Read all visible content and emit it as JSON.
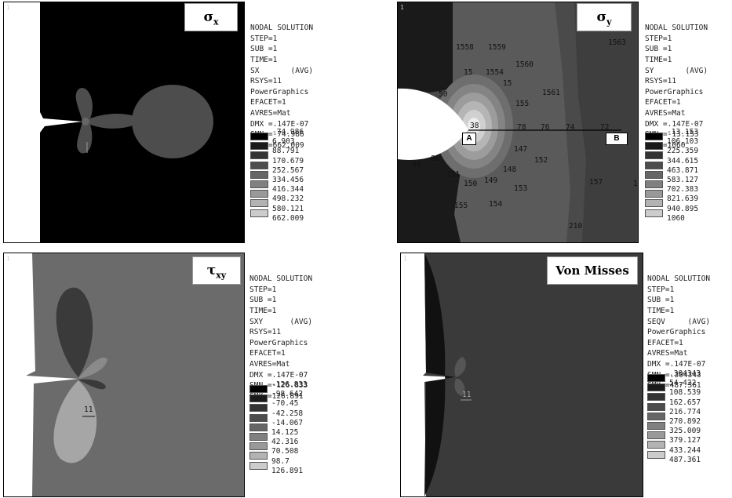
{
  "panels": [
    {
      "id": "sx",
      "corner_number": "1",
      "title": "σ",
      "title_sub": "x",
      "header_lines": [
        "NODAL SOLUTION",
        "STEP=1",
        "SUB =1",
        "TIME=1",
        "SX       (AVG)",
        "RSYS=11",
        "PowerGraphics",
        "EFACET=1",
        "AVRES=Mat",
        "DMX =.147E-07",
        "SMN =-74.986",
        "SMX =662.009"
      ],
      "scale_values": [
        "-74.986",
        "6.903",
        "88.791",
        "170.679",
        "252.567",
        "334.456",
        "416.344",
        "498.232",
        "580.121",
        "662.009"
      ],
      "scale_colors": [
        "#000000",
        "#1a1a1a",
        "#333333",
        "#4d4d4d",
        "#666666",
        "#808080",
        "#999999",
        "#b3b3b3",
        "#cccccc",
        "#e6e6e6"
      ],
      "node_labels": []
    },
    {
      "id": "sy",
      "corner_number": "1",
      "title": "σ",
      "title_sub": "y",
      "header_lines": [
        "NODAL SOLUTION",
        "STEP=1",
        "SUB =1",
        "TIME=1",
        "SY       (AVG)",
        "RSYS=11",
        "PowerGraphics",
        "EFACET=1",
        "AVRES=Mat",
        "DMX =.147E-07",
        "SMN =-13.153",
        "SMX =1060"
      ],
      "scale_values": [
        "-13.153",
        "106.103",
        "225.359",
        "344.615",
        "463.871",
        "583.127",
        "702.383",
        "821.639",
        "940.895",
        "1060"
      ],
      "scale_colors": [
        "#000000",
        "#1a1a1a",
        "#333333",
        "#4d4d4d",
        "#666666",
        "#808080",
        "#999999",
        "#b3b3b3",
        "#cccccc",
        "#e6e6e6"
      ],
      "node_labels": [
        "1558",
        "1559",
        "1563",
        "1560",
        "15",
        "1554",
        "15",
        "1561",
        "50",
        "155",
        "38",
        "78",
        "76",
        "74",
        "72",
        "147",
        "152",
        "84",
        "88",
        "148",
        "151",
        "150",
        "149",
        "153",
        "157",
        "1",
        "155",
        "154",
        "210"
      ],
      "path_labels": {
        "start": "A",
        "end": "B"
      }
    },
    {
      "id": "sxy",
      "corner_number": "1",
      "title": "τ",
      "title_sub": "xy",
      "header_lines": [
        "NODAL SOLUTION",
        "STEP=1",
        "SUB =1",
        "TIME=1",
        "SXY      (AVG)",
        "RSYS=11",
        "PowerGraphics",
        "EFACET=1",
        "AVRES=Mat",
        "DMX =.147E-07",
        "SMN =-126.833",
        "SMX =126.891"
      ],
      "scale_values": [
        "-126.833",
        "-98.642",
        "-70.45",
        "-42.258",
        "-14.067",
        "14.125",
        "42.316",
        "70.508",
        "98.7",
        "126.891"
      ],
      "scale_colors": [
        "#000000",
        "#1a1a1a",
        "#333333",
        "#4d4d4d",
        "#666666",
        "#808080",
        "#999999",
        "#b3b3b3",
        "#cccccc",
        "#e6e6e6"
      ],
      "node_labels": [
        "11"
      ]
    },
    {
      "id": "seqv",
      "corner_number": "1",
      "title": "Von Misses",
      "title_sub": "",
      "header_lines": [
        "NODAL SOLUTION",
        "STEP=1",
        "SUB =1",
        "TIME=1",
        "SEQV     (AVG)",
        "PowerGraphics",
        "EFACET=1",
        "AVRES=Mat",
        "DMX =.147E-07",
        "SMN =.304343",
        "SMX =487.361"
      ],
      "scale_values": [
        ".304343",
        "54.422",
        "108.539",
        "162.657",
        "216.774",
        "270.892",
        "325.009",
        "379.127",
        "433.244",
        "487.361"
      ],
      "scale_colors": [
        "#000000",
        "#1a1a1a",
        "#333333",
        "#4d4d4d",
        "#666666",
        "#808080",
        "#999999",
        "#b3b3b3",
        "#cccccc",
        "#e6e6e6"
      ],
      "node_labels": [
        "11"
      ]
    }
  ]
}
